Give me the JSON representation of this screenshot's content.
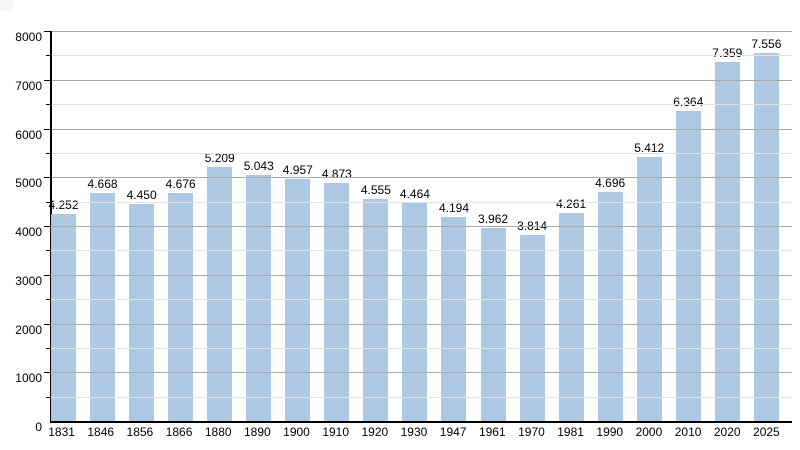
{
  "chart_data": {
    "type": "bar",
    "title": "",
    "xlabel": "",
    "ylabel": "",
    "categories": [
      "1831",
      "1846",
      "1856",
      "1866",
      "1880",
      "1890",
      "1900",
      "1910",
      "1920",
      "1930",
      "1947",
      "1961",
      "1970",
      "1981",
      "1990",
      "2000",
      "2010",
      "2020",
      "2025"
    ],
    "values": [
      4252,
      4668,
      4450,
      4676,
      5209,
      5043,
      4957,
      4873,
      4555,
      4464,
      4194,
      3962,
      3814,
      4261,
      4696,
      5412,
      6364,
      7359,
      7556
    ],
    "value_labels": [
      "4.252",
      "4.668",
      "4.450",
      "4.676",
      "5.209",
      "5.043",
      "4.957",
      "4.873",
      "4.555",
      "4.464",
      "4.194",
      "3.962",
      "3.814",
      "4.261",
      "4.696",
      "5.412",
      "6.364",
      "7.359",
      "7.556"
    ],
    "ylim": [
      0,
      8000
    ],
    "y_major_step": 1000,
    "y_minor_step": 500,
    "y_tick_labels": [
      "0",
      "1000",
      "2000",
      "3000",
      "4000",
      "5000",
      "6000",
      "7000",
      "8000"
    ],
    "grid": true,
    "legend_position": "none",
    "bar_color": "#acc8e3",
    "axis_color": "#000000",
    "major_grid_color": "#a9a9a9",
    "minor_grid_color": "#e3e3e3"
  }
}
